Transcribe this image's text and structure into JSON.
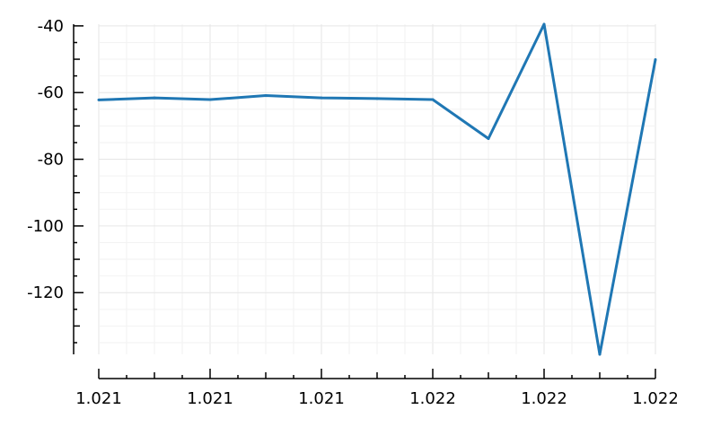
{
  "chart_data": {
    "type": "line",
    "title": "",
    "xlabel": "",
    "ylabel": "",
    "x_tick_labels": [
      "1.021",
      "1.021",
      "1.021",
      "1.022",
      "1.022",
      "1.022"
    ],
    "y_ticks": [
      -40,
      -60,
      -80,
      -100,
      -120
    ],
    "y_tick_labels": [
      "-40",
      "-60",
      "-80",
      "-100",
      "-120"
    ],
    "xlim": [
      0,
      10
    ],
    "ylim": [
      -138.5,
      -39.5
    ],
    "grid": true,
    "legend": "none",
    "series": [
      {
        "color": "#1f77b4",
        "x": [
          0,
          1,
          2,
          3,
          4,
          5,
          6,
          7,
          8,
          9,
          10
        ],
        "values": [
          -62.2,
          -61.6,
          -62.1,
          -60.9,
          -61.6,
          -61.8,
          -62.1,
          -73.8,
          -39.5,
          -138.5,
          -50.1
        ]
      }
    ]
  }
}
